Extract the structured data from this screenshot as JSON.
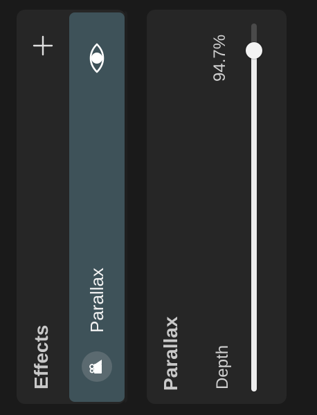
{
  "effects": {
    "title": "Effects",
    "add_icon": "plus-icon",
    "items": [
      {
        "name": "Parallax",
        "visible": true,
        "visibility_icon": "eye-icon",
        "type_icon": "video-camera-icon",
        "selected": true
      }
    ]
  },
  "settings": {
    "title": "Parallax",
    "depth": {
      "label": "Depth",
      "value_text": "94.7%",
      "value": 0.947
    }
  },
  "colors": {
    "background": "#1a1a1a",
    "panel": "#262626",
    "selected_item": "#3e5259",
    "slider_fill": "#ededed",
    "slider_track": "#4a4a4a"
  }
}
